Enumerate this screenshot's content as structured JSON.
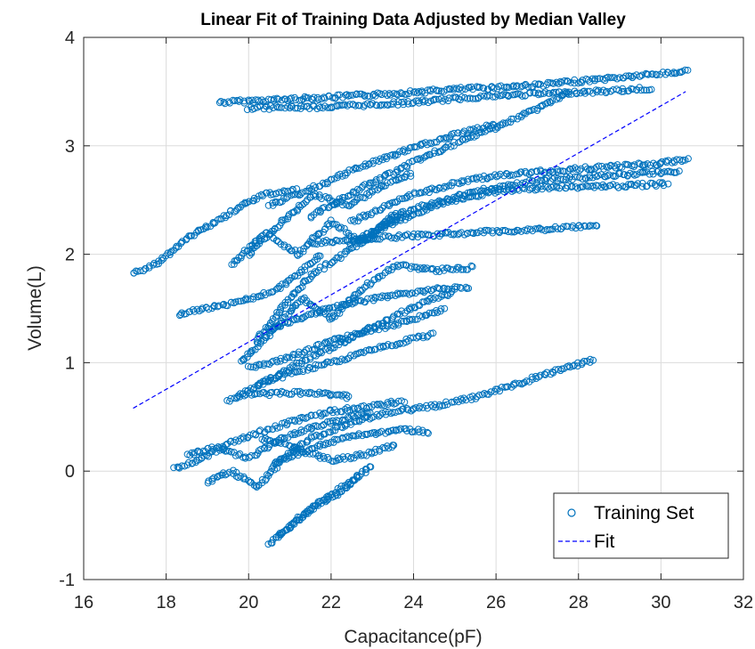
{
  "chart_data": {
    "type": "scatter",
    "title": "Linear Fit of Training Data Adjusted by Median Valley",
    "xlabel": "Capacitance(pF)",
    "ylabel": "Volume(L)",
    "xlim": [
      16,
      32
    ],
    "ylim": [
      -1,
      4
    ],
    "xticks": [
      "16",
      "18",
      "20",
      "22",
      "24",
      "26",
      "28",
      "30",
      "32"
    ],
    "yticks": [
      "-1",
      "0",
      "1",
      "2",
      "3",
      "4"
    ],
    "grid": true,
    "legend_position": "bottom-right",
    "series": [
      {
        "name": "Training Set",
        "kind": "markers",
        "marker": "circle",
        "color": "#0072BD",
        "trajectories": [
          [
            [
              19.3,
              3.4
            ],
            [
              21.0,
              3.43
            ],
            [
              23.0,
              3.47
            ],
            [
              25.0,
              3.52
            ],
            [
              27.0,
              3.56
            ],
            [
              29.0,
              3.63
            ],
            [
              30.7,
              3.69
            ]
          ],
          [
            [
              20.0,
              3.35
            ],
            [
              22.0,
              3.36
            ],
            [
              24.0,
              3.4
            ],
            [
              25.5,
              3.45
            ],
            [
              27.0,
              3.48
            ],
            [
              28.5,
              3.5
            ],
            [
              29.8,
              3.53
            ]
          ],
          [
            [
              20.5,
              2.45
            ],
            [
              21.5,
              2.6
            ],
            [
              22.8,
              2.82
            ],
            [
              24.0,
              2.98
            ],
            [
              25.0,
              3.1
            ],
            [
              26.0,
              3.2
            ]
          ],
          [
            [
              21.5,
              2.35
            ],
            [
              22.8,
              2.62
            ],
            [
              24.0,
              2.85
            ],
            [
              25.2,
              3.05
            ],
            [
              26.3,
              3.22
            ],
            [
              27.3,
              3.4
            ],
            [
              27.8,
              3.5
            ]
          ],
          [
            [
              22.5,
              2.3
            ],
            [
              24.0,
              2.55
            ],
            [
              25.5,
              2.7
            ],
            [
              27.0,
              2.76
            ],
            [
              28.5,
              2.8
            ],
            [
              30.0,
              2.84
            ],
            [
              30.7,
              2.87
            ]
          ],
          [
            [
              23.0,
              2.2
            ],
            [
              24.5,
              2.45
            ],
            [
              26.0,
              2.58
            ],
            [
              27.5,
              2.62
            ],
            [
              29.0,
              2.63
            ],
            [
              30.2,
              2.65
            ]
          ],
          [
            [
              22.5,
              2.1
            ],
            [
              24.0,
              2.42
            ],
            [
              25.5,
              2.58
            ],
            [
              27.0,
              2.68
            ],
            [
              28.5,
              2.72
            ],
            [
              30.5,
              2.77
            ]
          ],
          [
            [
              21.5,
              2.1
            ],
            [
              23.0,
              2.15
            ],
            [
              24.5,
              2.18
            ],
            [
              26.0,
              2.21
            ],
            [
              27.5,
              2.24
            ],
            [
              28.5,
              2.26
            ]
          ],
          [
            [
              17.2,
              1.82
            ],
            [
              17.8,
              1.92
            ],
            [
              18.5,
              2.15
            ],
            [
              19.2,
              2.3
            ],
            [
              19.8,
              2.45
            ],
            [
              20.4,
              2.55
            ],
            [
              21.2,
              2.6
            ]
          ],
          [
            [
              18.3,
              1.45
            ],
            [
              19.0,
              1.5
            ],
            [
              19.6,
              1.55
            ],
            [
              20.2,
              1.6
            ],
            [
              20.8,
              1.7
            ],
            [
              21.3,
              1.85
            ],
            [
              21.8,
              2.0
            ]
          ],
          [
            [
              20.0,
              2.0
            ],
            [
              20.8,
              2.3
            ],
            [
              21.6,
              2.55
            ],
            [
              22.4,
              2.45
            ],
            [
              23.2,
              2.62
            ],
            [
              24.0,
              2.75
            ]
          ],
          [
            [
              19.6,
              1.9
            ],
            [
              20.4,
              2.2
            ],
            [
              21.2,
              2.0
            ],
            [
              22.0,
              2.3
            ],
            [
              22.8,
              2.1
            ],
            [
              23.6,
              2.4
            ]
          ],
          [
            [
              20.2,
              1.2
            ],
            [
              20.8,
              1.5
            ],
            [
              21.5,
              1.8
            ],
            [
              22.3,
              2.0
            ],
            [
              23.0,
              2.2
            ],
            [
              23.8,
              2.4
            ]
          ],
          [
            [
              19.8,
              1.0
            ],
            [
              20.6,
              1.3
            ],
            [
              21.3,
              1.6
            ],
            [
              22.0,
              1.4
            ],
            [
              22.8,
              1.7
            ],
            [
              23.6,
              1.9
            ],
            [
              24.5,
              1.85
            ],
            [
              25.5,
              1.88
            ]
          ],
          [
            [
              19.5,
              0.65
            ],
            [
              20.3,
              0.8
            ],
            [
              21.0,
              0.95
            ],
            [
              21.8,
              1.1
            ],
            [
              22.6,
              1.25
            ],
            [
              23.4,
              1.4
            ],
            [
              24.2,
              1.55
            ],
            [
              25.0,
              1.65
            ]
          ],
          [
            [
              20.0,
              0.95
            ],
            [
              21.0,
              1.05
            ],
            [
              22.0,
              1.2
            ],
            [
              23.0,
              1.3
            ],
            [
              24.0,
              1.4
            ],
            [
              24.8,
              1.5
            ]
          ],
          [
            [
              20.5,
              1.3
            ],
            [
              21.5,
              1.45
            ],
            [
              22.5,
              1.55
            ],
            [
              23.5,
              1.62
            ],
            [
              24.5,
              1.68
            ],
            [
              25.4,
              1.7
            ]
          ],
          [
            [
              20.2,
              0.8
            ],
            [
              21.0,
              0.9
            ],
            [
              22.0,
              1.0
            ],
            [
              23.0,
              1.12
            ],
            [
              23.8,
              1.2
            ],
            [
              24.5,
              1.27
            ]
          ],
          [
            [
              19.8,
              0.7
            ],
            [
              20.8,
              0.72
            ],
            [
              21.8,
              0.72
            ],
            [
              22.5,
              0.68
            ]
          ],
          [
            [
              18.2,
              0.02
            ],
            [
              18.8,
              0.1
            ],
            [
              19.5,
              0.25
            ],
            [
              20.2,
              0.35
            ],
            [
              21.0,
              0.45
            ],
            [
              22.0,
              0.55
            ],
            [
              23.0,
              0.6
            ],
            [
              23.8,
              0.65
            ]
          ],
          [
            [
              18.5,
              0.15
            ],
            [
              19.2,
              0.22
            ],
            [
              20.0,
              0.12
            ],
            [
              20.8,
              0.3
            ],
            [
              21.5,
              0.4
            ],
            [
              22.3,
              0.48
            ],
            [
              23.0,
              0.55
            ]
          ],
          [
            [
              19.0,
              -0.1
            ],
            [
              19.6,
              0.0
            ],
            [
              20.2,
              -0.15
            ],
            [
              20.8,
              0.1
            ],
            [
              21.5,
              0.2
            ],
            [
              22.2,
              0.3
            ],
            [
              23.0,
              0.35
            ],
            [
              23.8,
              0.38
            ],
            [
              24.4,
              0.36
            ]
          ],
          [
            [
              20.6,
              0.05
            ],
            [
              21.5,
              0.3
            ],
            [
              22.5,
              0.45
            ],
            [
              23.5,
              0.55
            ],
            [
              24.5,
              0.6
            ],
            [
              25.5,
              0.68
            ],
            [
              26.5,
              0.8
            ],
            [
              27.5,
              0.93
            ],
            [
              28.4,
              1.03
            ]
          ],
          [
            [
              20.5,
              -0.68
            ],
            [
              21.0,
              -0.5
            ],
            [
              21.5,
              -0.35
            ],
            [
              22.0,
              -0.22
            ],
            [
              22.5,
              -0.1
            ],
            [
              23.0,
              0.06
            ]
          ],
          [
            [
              20.7,
              -0.6
            ],
            [
              21.2,
              -0.45
            ],
            [
              21.7,
              -0.3
            ],
            [
              22.2,
              -0.2
            ],
            [
              22.7,
              -0.05
            ]
          ],
          [
            [
              20.3,
              0.3
            ],
            [
              21.2,
              0.2
            ],
            [
              22.0,
              0.1
            ],
            [
              22.8,
              0.15
            ],
            [
              23.6,
              0.25
            ]
          ]
        ]
      },
      {
        "name": "Fit",
        "kind": "dashed-line",
        "color": "#0000FF",
        "points": [
          [
            17.2,
            0.58
          ],
          [
            30.6,
            3.5
          ]
        ]
      }
    ]
  }
}
